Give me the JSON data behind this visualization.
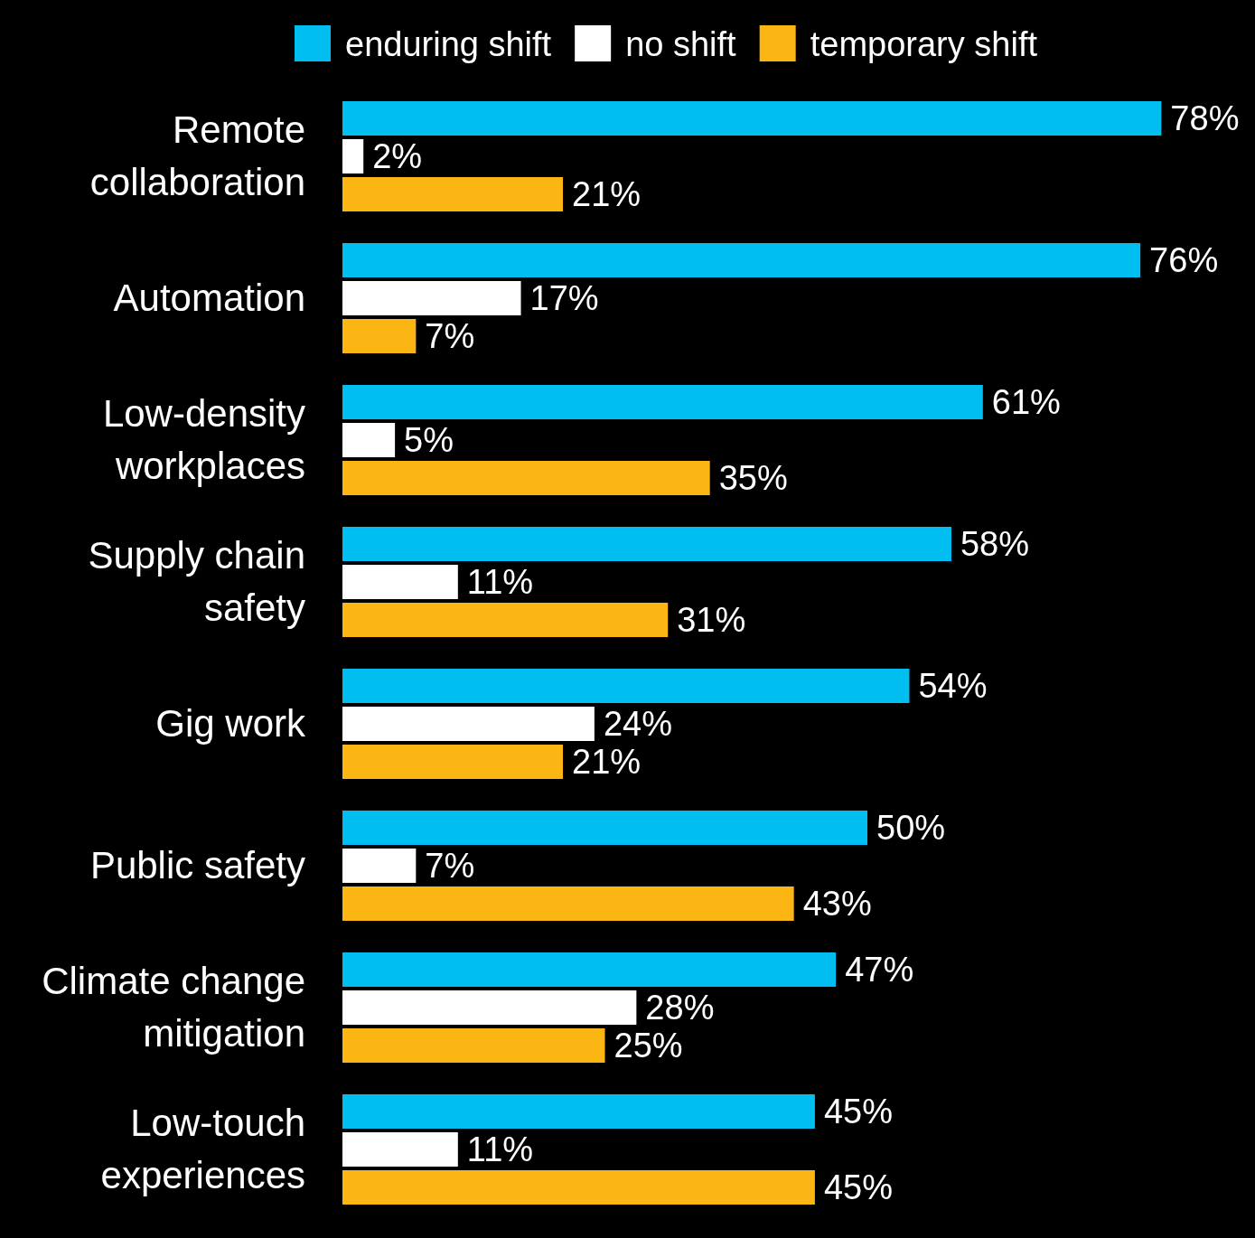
{
  "chart_data": {
    "type": "bar",
    "orientation": "horizontal",
    "legend": "top",
    "categories": [
      "Remote collaboration",
      "Automation",
      "Low-density workplaces",
      "Supply chain safety",
      "Gig work",
      "Public safety",
      "Climate change mitigation",
      "Low-touch experiences"
    ],
    "series": [
      {
        "name": "enduring shift",
        "color": "#00bef0",
        "values": [
          78,
          76,
          61,
          58,
          54,
          50,
          47,
          45
        ],
        "value_labels": [
          "78%",
          "76%",
          "61%",
          "58%",
          "54%",
          "50%",
          "47%",
          "45%"
        ]
      },
      {
        "name": "no shift",
        "color": "#ffffff",
        "values": [
          2,
          17,
          5,
          11,
          24,
          7,
          28,
          11
        ],
        "value_labels": [
          "2%",
          "17%",
          "5%",
          "11%",
          "24%",
          "7%",
          "28%",
          "11%"
        ]
      },
      {
        "name": "temporary shift",
        "color": "#fbb614",
        "values": [
          21,
          7,
          35,
          31,
          21,
          43,
          25,
          45
        ],
        "value_labels": [
          "21%",
          "7%",
          "35%",
          "31%",
          "21%",
          "43%",
          "25%",
          "45%"
        ]
      }
    ]
  }
}
